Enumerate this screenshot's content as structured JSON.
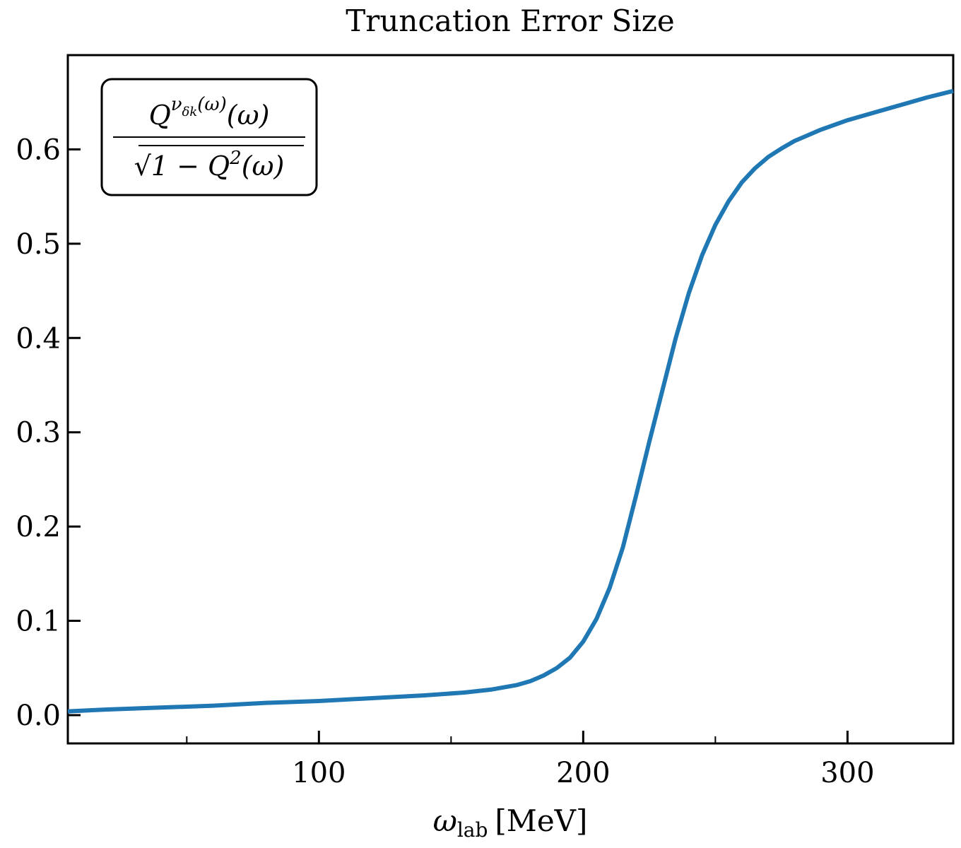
{
  "chart_data": {
    "type": "line",
    "title": "Truncation Error Size",
    "xlabel": "ωlab [MeV]",
    "xlabel_main": "ω",
    "xlabel_sub": "lab",
    "xlabel_unit": "[MeV]",
    "ylabel": "",
    "xlim": [
      5,
      340
    ],
    "ylim": [
      -0.03,
      0.7
    ],
    "xticks": [
      100,
      200,
      300
    ],
    "xtick_labels": [
      "100",
      "200",
      "300"
    ],
    "xminor_ticks": [
      50,
      150,
      250
    ],
    "yticks": [
      0.0,
      0.1,
      0.2,
      0.3,
      0.4,
      0.5,
      0.6
    ],
    "ytick_labels": [
      "0.0",
      "0.1",
      "0.2",
      "0.3",
      "0.4",
      "0.5",
      "0.6"
    ],
    "grid": false,
    "annotation": {
      "numerator": "Q^{ν_{δk}(ω)}(ω)",
      "numerator_base": "Q",
      "numerator_exp": "ν",
      "numerator_exp_sub": "δk",
      "numerator_exp_arg": "(ω)",
      "numerator_arg": "(ω)",
      "denominator": "√(1 − Q²(ω))",
      "denominator_root": "√",
      "denominator_body": "1 − Q",
      "denominator_sup": "2",
      "denominator_arg": "(ω)",
      "placement": "top-left"
    },
    "series": [
      {
        "color": "#1f77b4",
        "x": [
          5,
          20,
          40,
          60,
          80,
          100,
          120,
          140,
          155,
          165,
          175,
          180,
          185,
          190,
          195,
          200,
          205,
          210,
          215,
          220,
          225,
          230,
          235,
          240,
          245,
          250,
          255,
          260,
          265,
          270,
          275,
          280,
          290,
          300,
          310,
          320,
          330,
          340
        ],
        "y": [
          0.004,
          0.006,
          0.008,
          0.01,
          0.013,
          0.015,
          0.018,
          0.021,
          0.024,
          0.027,
          0.032,
          0.036,
          0.042,
          0.05,
          0.061,
          0.078,
          0.102,
          0.135,
          0.178,
          0.233,
          0.29,
          0.345,
          0.4,
          0.448,
          0.488,
          0.52,
          0.545,
          0.565,
          0.58,
          0.592,
          0.601,
          0.609,
          0.621,
          0.631,
          0.639,
          0.647,
          0.655,
          0.662
        ]
      }
    ]
  }
}
